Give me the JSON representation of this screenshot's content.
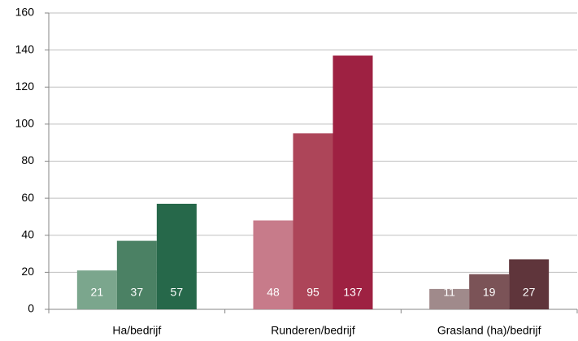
{
  "chart_data": {
    "type": "bar",
    "categories": [
      "Ha/bedrijf",
      "Runderen/bedrijf",
      "Grasland (ha)/bedrijf"
    ],
    "series": [
      {
        "values": [
          21,
          48,
          11
        ],
        "colors": [
          "#7ba68d",
          "#c77b8a",
          "#a08a8b"
        ]
      },
      {
        "values": [
          37,
          95,
          19
        ],
        "colors": [
          "#4b8164",
          "#ad4559",
          "#7b5357"
        ]
      },
      {
        "values": [
          57,
          137,
          27
        ],
        "colors": [
          "#26684a",
          "#9e2142",
          "#5f353b"
        ]
      }
    ],
    "ylim": [
      0,
      160
    ],
    "yticks": [
      0,
      20,
      40,
      60,
      80,
      100,
      120,
      140,
      160
    ],
    "grid": true
  }
}
